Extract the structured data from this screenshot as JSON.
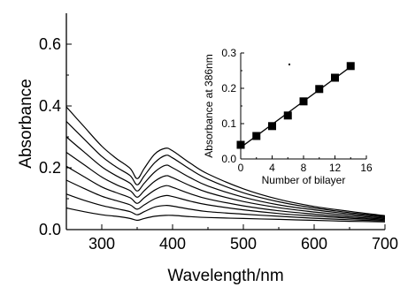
{
  "chart_data": [
    {
      "type": "line",
      "xlabel": "Wavelength/nm",
      "ylabel": "Absorbance",
      "xlim": [
        250,
        700
      ],
      "ylim": [
        0.0,
        0.7
      ],
      "x_ticks": [
        "300",
        "400",
        "500",
        "600",
        "700"
      ],
      "y_ticks": [
        "0.0",
        "0.2",
        "0.4",
        "0.6"
      ],
      "grid": false,
      "line_color": "#000000",
      "x": [
        250,
        275,
        300,
        320,
        340,
        350,
        360,
        375,
        390,
        400,
        425,
        450,
        500,
        550,
        600,
        650,
        700
      ],
      "series": [
        {
          "values": [
            0.07,
            0.058,
            0.048,
            0.043,
            0.036,
            0.03,
            0.036,
            0.043,
            0.046,
            0.046,
            0.042,
            0.039,
            0.036,
            0.033,
            0.03,
            0.027,
            0.025
          ]
        },
        {
          "values": [
            0.115,
            0.095,
            0.078,
            0.068,
            0.058,
            0.048,
            0.058,
            0.073,
            0.078,
            0.076,
            0.066,
            0.058,
            0.05,
            0.043,
            0.037,
            0.032,
            0.028
          ]
        },
        {
          "values": [
            0.16,
            0.133,
            0.108,
            0.094,
            0.08,
            0.066,
            0.08,
            0.1,
            0.11,
            0.107,
            0.092,
            0.08,
            0.064,
            0.052,
            0.044,
            0.037,
            0.031
          ]
        },
        {
          "values": [
            0.205,
            0.171,
            0.138,
            0.12,
            0.103,
            0.085,
            0.103,
            0.128,
            0.142,
            0.137,
            0.116,
            0.099,
            0.077,
            0.061,
            0.05,
            0.041,
            0.034
          ]
        },
        {
          "values": [
            0.25,
            0.21,
            0.17,
            0.146,
            0.126,
            0.105,
            0.126,
            0.157,
            0.174,
            0.168,
            0.142,
            0.12,
            0.091,
            0.071,
            0.057,
            0.046,
            0.037
          ]
        },
        {
          "values": [
            0.3,
            0.251,
            0.203,
            0.175,
            0.15,
            0.125,
            0.15,
            0.187,
            0.208,
            0.2,
            0.168,
            0.141,
            0.105,
            0.08,
            0.064,
            0.051,
            0.04
          ]
        },
        {
          "values": [
            0.35,
            0.293,
            0.237,
            0.203,
            0.175,
            0.145,
            0.174,
            0.217,
            0.24,
            0.232,
            0.195,
            0.163,
            0.119,
            0.09,
            0.07,
            0.055,
            0.043
          ]
        },
        {
          "values": [
            0.397,
            0.333,
            0.27,
            0.231,
            0.198,
            0.165,
            0.198,
            0.245,
            0.263,
            0.255,
            0.215,
            0.18,
            0.132,
            0.098,
            0.075,
            0.059,
            0.045
          ]
        }
      ]
    },
    {
      "type": "scatter",
      "xlabel": "Number of bilayer",
      "ylabel": "Absorbance at 386nm",
      "xlim": [
        0,
        16
      ],
      "ylim": [
        0.0,
        0.3
      ],
      "x_ticks": [
        "0",
        "4",
        "8",
        "12",
        "16"
      ],
      "y_ticks": [
        "0.0",
        "0.1",
        "0.2",
        "0.3"
      ],
      "grid": false,
      "fit_line": true,
      "marker": "square",
      "x": [
        0,
        2,
        4,
        6,
        8,
        10,
        12,
        14
      ],
      "values": [
        0.04,
        0.065,
        0.093,
        0.123,
        0.163,
        0.198,
        0.23,
        0.263
      ]
    }
  ]
}
